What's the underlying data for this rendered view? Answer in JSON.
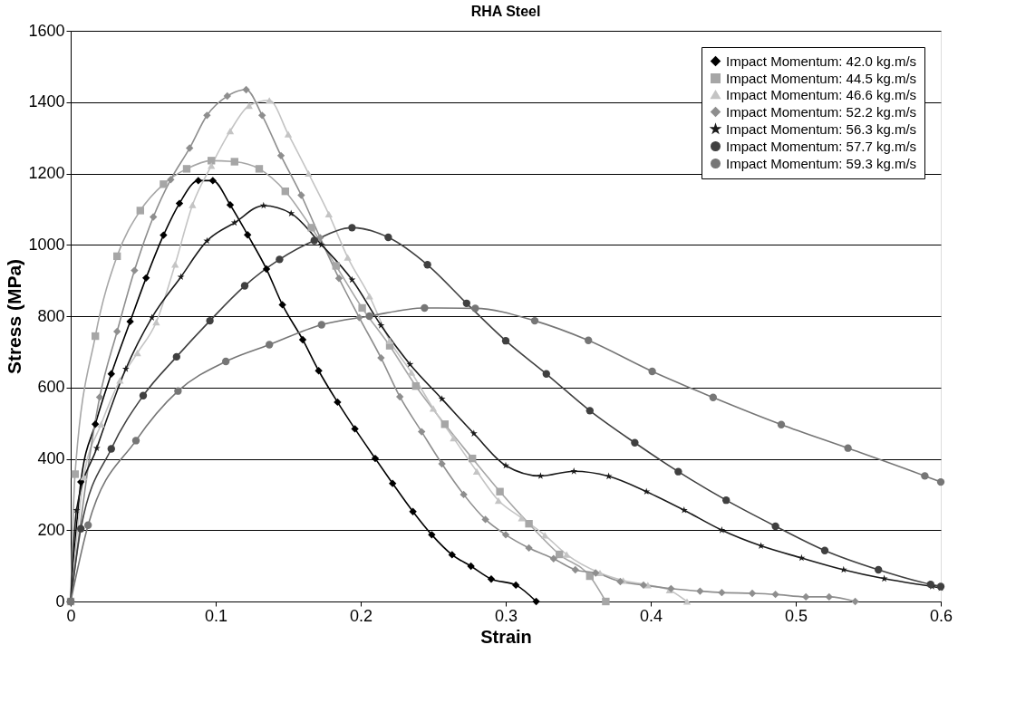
{
  "chart_data": {
    "type": "line",
    "title": "RHA Steel",
    "xlabel": "Strain",
    "ylabel": "Stress (MPa)",
    "xlim": [
      0,
      0.6
    ],
    "xticks": [
      0,
      0.1,
      0.2,
      0.3,
      0.4,
      0.5,
      0.6
    ],
    "ylim": [
      0,
      1600
    ],
    "yticks": [
      0,
      200,
      400,
      600,
      800,
      1000,
      1200,
      1400,
      1600
    ],
    "grid": "y",
    "legend": "top right",
    "line_style": "solid",
    "series": [
      {
        "name": "Impact Momentum: 42.0 kg.m/s",
        "color": "#000000",
        "marker": "diamond",
        "x": [
          0,
          0.007,
          0.017,
          0.028,
          0.041,
          0.052,
          0.064,
          0.075,
          0.088,
          0.098,
          0.11,
          0.122,
          0.135,
          0.146,
          0.16,
          0.171,
          0.184,
          0.196,
          0.21,
          0.222,
          0.236,
          0.249,
          0.263,
          0.276,
          0.29,
          0.307,
          0.321
        ],
        "values": [
          0,
          335,
          497,
          638,
          785,
          907,
          1027,
          1116,
          1180,
          1180,
          1112,
          1028,
          932,
          832,
          734,
          647,
          559,
          484,
          401,
          331,
          252,
          187,
          131,
          99,
          63,
          46,
          0
        ]
      },
      {
        "name": "Impact Momentum: 44.5 kg.m/s",
        "color": "#a6a6a6",
        "marker": "square",
        "x": [
          0,
          0.003,
          0.017,
          0.032,
          0.048,
          0.064,
          0.08,
          0.097,
          0.113,
          0.13,
          0.148,
          0.166,
          0.183,
          0.201,
          0.22,
          0.238,
          0.258,
          0.277,
          0.296,
          0.316,
          0.337,
          0.358,
          0.369
        ],
        "values": [
          0,
          357,
          744,
          968,
          1096,
          1170,
          1213,
          1236,
          1233,
          1213,
          1150,
          1048,
          941,
          823,
          717,
          604,
          497,
          401,
          308,
          218,
          132,
          71,
          0
        ]
      },
      {
        "name": "Impact Momentum: 46.6 kg.m/s",
        "color": "#c4c4c4",
        "marker": "triangle",
        "x": [
          0,
          0.009,
          0.021,
          0.034,
          0.046,
          0.059,
          0.072,
          0.084,
          0.097,
          0.11,
          0.123,
          0.137,
          0.15,
          0.164,
          0.178,
          0.191,
          0.206,
          0.22,
          0.235,
          0.25,
          0.264,
          0.28,
          0.295,
          0.311,
          0.327,
          0.342,
          0.365,
          0.381,
          0.398,
          0.413,
          0.425
        ],
        "values": [
          0,
          349,
          497,
          620,
          697,
          783,
          945,
          1112,
          1222,
          1319,
          1390,
          1405,
          1310,
          1200,
          1086,
          965,
          856,
          731,
          642,
          541,
          458,
          365,
          283,
          234,
          186,
          132,
          80,
          59,
          46,
          32,
          0
        ]
      },
      {
        "name": "Impact Momentum: 52.2 kg.m/s",
        "color": "#8e8e8e",
        "marker": "diamond",
        "x": [
          0,
          0.02,
          0.032,
          0.044,
          0.057,
          0.069,
          0.082,
          0.094,
          0.108,
          0.121,
          0.132,
          0.145,
          0.159,
          0.172,
          0.185,
          0.199,
          0.214,
          0.227,
          0.242,
          0.256,
          0.271,
          0.286,
          0.3,
          0.316,
          0.333,
          0.348,
          0.362,
          0.379,
          0.395,
          0.414,
          0.434,
          0.449,
          0.47,
          0.486,
          0.507,
          0.523,
          0.541
        ],
        "values": [
          0,
          573,
          757,
          928,
          1078,
          1183,
          1271,
          1363,
          1417,
          1435,
          1363,
          1250,
          1139,
          1020,
          906,
          796,
          683,
          574,
          476,
          386,
          300,
          230,
          187,
          150,
          120,
          89,
          80,
          56,
          46,
          36,
          29,
          25,
          23,
          20,
          13,
          13,
          0
        ]
      },
      {
        "name": "Impact Momentum: 56.3 kg.m/s",
        "color": "#1a1a1a",
        "marker": "star",
        "x": [
          0,
          0.004,
          0.018,
          0.038,
          0.056,
          0.076,
          0.094,
          0.113,
          0.133,
          0.152,
          0.173,
          0.194,
          0.214,
          0.234,
          0.256,
          0.278,
          0.3,
          0.324,
          0.347,
          0.371,
          0.397,
          0.423,
          0.449,
          0.476,
          0.504,
          0.533,
          0.561,
          0.594,
          0.6
        ],
        "values": [
          0,
          256,
          430,
          652,
          796,
          910,
          1011,
          1062,
          1110,
          1088,
          1000,
          902,
          774,
          665,
          568,
          471,
          381,
          352,
          365,
          351,
          308,
          256,
          200,
          156,
          122,
          89,
          64,
          42,
          38
        ]
      },
      {
        "name": "Impact Momentum: 57.7 kg.m/s",
        "color": "#404040",
        "marker": "circle",
        "x": [
          0,
          0.007,
          0.028,
          0.05,
          0.073,
          0.096,
          0.12,
          0.144,
          0.168,
          0.194,
          0.219,
          0.246,
          0.273,
          0.3,
          0.328,
          0.358,
          0.389,
          0.419,
          0.452,
          0.486,
          0.52,
          0.557,
          0.593,
          0.6
        ],
        "values": [
          0,
          204,
          428,
          577,
          686,
          787,
          885,
          959,
          1012,
          1048,
          1021,
          944,
          836,
          731,
          638,
          535,
          445,
          364,
          284,
          211,
          143,
          89,
          48,
          42
        ]
      },
      {
        "name": "Impact Momentum: 59.3 kg.m/s",
        "color": "#767676",
        "marker": "circle",
        "x": [
          0,
          0.012,
          0.045,
          0.074,
          0.107,
          0.137,
          0.173,
          0.206,
          0.244,
          0.279,
          0.32,
          0.357,
          0.401,
          0.443,
          0.49,
          0.536,
          0.589,
          0.6
        ],
        "values": [
          0,
          214,
          451,
          590,
          673,
          720,
          776,
          800,
          823,
          822,
          787,
          732,
          645,
          572,
          496,
          430,
          352,
          335
        ]
      }
    ]
  }
}
